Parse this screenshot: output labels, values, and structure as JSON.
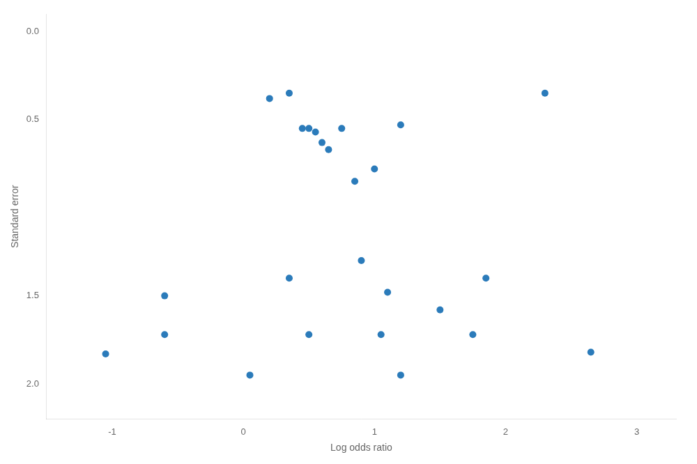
{
  "chart_data": {
    "type": "scatter",
    "xlabel": "Log odds ratio",
    "ylabel": "Standard error",
    "x": [
      -1.05,
      -0.6,
      -0.6,
      0.05,
      0.2,
      0.35,
      0.35,
      0.45,
      0.5,
      0.55,
      0.6,
      0.65,
      0.5,
      0.75,
      0.85,
      0.9,
      1.0,
      1.05,
      1.1,
      1.2,
      1.2,
      1.5,
      1.75,
      1.85,
      2.3,
      2.65
    ],
    "values": [
      1.83,
      1.72,
      1.5,
      1.95,
      0.38,
      0.35,
      1.4,
      0.55,
      0.55,
      0.57,
      0.63,
      0.67,
      1.72,
      0.55,
      0.85,
      1.3,
      0.78,
      1.72,
      1.48,
      0.53,
      1.95,
      1.58,
      1.72,
      1.4,
      0.35,
      1.82
    ],
    "color": "#2b7bba",
    "xlim": [
      -1.5,
      3.3
    ],
    "ylim": [
      2.2,
      -0.1
    ],
    "xticks": [
      -1,
      0,
      1,
      2,
      3
    ],
    "yticks": [
      {
        "value": 0.0,
        "label": "0.0"
      },
      {
        "value": 0.5,
        "label": "0.5"
      },
      {
        "value": 1.5,
        "label": "1.5"
      },
      {
        "value": 2.0,
        "label": "2.0"
      }
    ],
    "grid": false
  }
}
